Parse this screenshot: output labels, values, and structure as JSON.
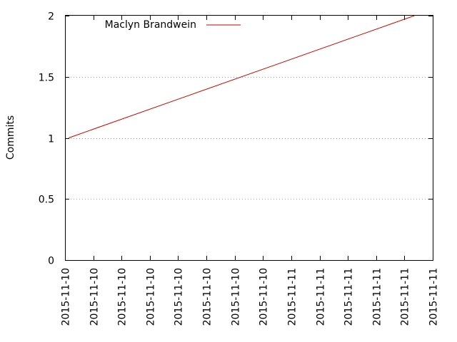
{
  "chart_data": {
    "type": "line",
    "title": "",
    "xlabel": "",
    "ylabel": "Commits",
    "ylim": [
      0,
      2
    ],
    "y_ticks": [
      "0",
      "0.5",
      "1",
      "1.5",
      "2"
    ],
    "x_ticks": [
      "2015-11-10",
      "2015-11-10",
      "2015-11-10",
      "2015-11-10",
      "2015-11-10",
      "2015-11-10",
      "2015-11-10",
      "2015-11-10",
      "2015-11-11",
      "2015-11-11",
      "2015-11-11",
      "2015-11-11",
      "2015-11-11",
      "2015-11-11"
    ],
    "grid": "horizontal dotted",
    "legend": "top-left",
    "series": [
      {
        "name": "Maclyn Brandwein",
        "color": "#cc0000",
        "points": [
          {
            "x": 0.13,
            "y": 1
          },
          {
            "x": 12.35,
            "y": 2
          }
        ]
      }
    ]
  }
}
